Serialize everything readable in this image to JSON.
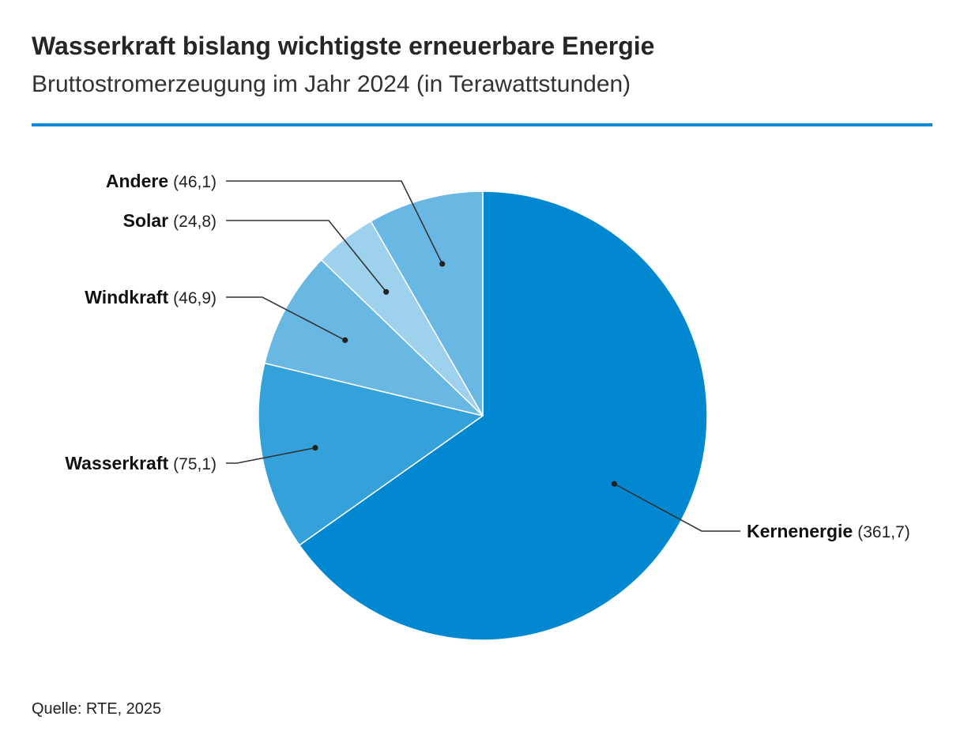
{
  "header": {
    "title": "Wasserkraft bislang wichtigste erneuerbare Energie",
    "subtitle": "Bruttostromerzeugung im Jahr 2024 (in Terawattstunden)"
  },
  "footer": {
    "source": "Quelle: RTE, 2025"
  },
  "colors": {
    "accent_rule": "#0a8ad6"
  },
  "chart_data": {
    "type": "pie",
    "title": "Wasserkraft bislang wichtigste erneuerbare Energie",
    "subtitle": "Bruttostromerzeugung im Jahr 2024 (in Terawattstunden)",
    "unit": "Terawattstunden",
    "start_angle_deg": 0,
    "direction": "clockwise",
    "slices": [
      {
        "name": "Kernenergie",
        "value": 361.7,
        "value_label": "(361,7)",
        "color": "#0288d1"
      },
      {
        "name": "Wasserkraft",
        "value": 75.1,
        "value_label": "(75,1)",
        "color": "#35a1db"
      },
      {
        "name": "Windkraft",
        "value": 46.9,
        "value_label": "(46,9)",
        "color": "#69b8e3"
      },
      {
        "name": "Solar",
        "value": 24.8,
        "value_label": "(24,8)",
        "color": "#9dd1ee"
      },
      {
        "name": "Andere",
        "value": 46.1,
        "value_label": "(46,1)",
        "color": "#69b8e3"
      }
    ]
  }
}
